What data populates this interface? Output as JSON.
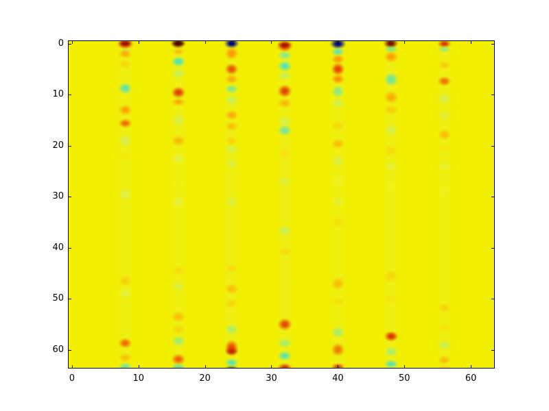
{
  "figure": {
    "background_color": "#ffffff",
    "frame_color": "#000000",
    "tick_label_color": "#000000"
  },
  "chart_data": {
    "type": "heatmap",
    "title": "",
    "xlabel": "",
    "ylabel": "",
    "grid_shape": [
      64,
      64
    ],
    "x_range": [
      -0.5,
      63.5
    ],
    "y_range": [
      63.5,
      -0.5
    ],
    "y_axis_inverted": true,
    "colormap": "jet",
    "legend": "none",
    "grid": "off",
    "x_tick_values": [
      0,
      10,
      20,
      30,
      40,
      50,
      60
    ],
    "x_tick_labels": [
      "0",
      "10",
      "20",
      "30",
      "40",
      "50",
      "60"
    ],
    "y_tick_values": [
      0,
      10,
      20,
      30,
      40,
      50,
      60
    ],
    "y_tick_labels": [
      "0",
      "10",
      "20",
      "30",
      "40",
      "50",
      "60"
    ],
    "background_value_color": "#f3ef00",
    "stripe_tint": {
      "color": "#e2f45c",
      "alpha": 0.2,
      "width_cols": 1.7
    },
    "active_columns": [
      8,
      16,
      24,
      32,
      40,
      48,
      56
    ],
    "blob_format": "[row_center, row_radius, color, alpha, col_radius_optional]",
    "columns": [
      {
        "x": 8,
        "blobs": [
          [
            0,
            1.1,
            "#cf2000",
            1,
            1.3
          ],
          [
            0,
            0.5,
            "#801000",
            0.85
          ],
          [
            1.3,
            0.5,
            "#b5f380",
            0.5
          ],
          [
            2,
            1.0,
            "#ff9800",
            0.75
          ],
          [
            4,
            1.0,
            "#ffc000",
            0.5
          ],
          [
            8.7,
            1.2,
            "#4ae2c2",
            0.85
          ],
          [
            13,
            1.1,
            "#ff8f00",
            0.8
          ],
          [
            15.6,
            0.9,
            "#f04e00",
            0.8
          ],
          [
            19,
            1.4,
            "#c6f17e",
            0.55
          ],
          [
            22,
            1.0,
            "#ffd900",
            0.4
          ],
          [
            29.5,
            1.3,
            "#cdf37c",
            0.5
          ],
          [
            37,
            1.0,
            "#f2ef10",
            0.35
          ],
          [
            46.5,
            1.2,
            "#ffb200",
            0.5
          ],
          [
            49,
            1.0,
            "#d2f477",
            0.45
          ],
          [
            58.7,
            1.1,
            "#f05800",
            0.85
          ],
          [
            61.5,
            0.9,
            "#ffa300",
            0.6
          ],
          [
            63.3,
            0.9,
            "#52e4b6",
            0.8
          ]
        ]
      },
      {
        "x": 16,
        "blobs": [
          [
            0,
            1.0,
            "#6e0900",
            1,
            1.2
          ],
          [
            0,
            0.5,
            "#2e0800",
            0.8
          ],
          [
            1.6,
            0.7,
            "#ff9b00",
            0.55
          ],
          [
            3.5,
            1.1,
            "#3fe4c6",
            0.9
          ],
          [
            5.9,
            1.0,
            "#a5f18a",
            0.55
          ],
          [
            9.6,
            1.2,
            "#e03000",
            0.9
          ],
          [
            11.4,
            0.8,
            "#ff9300",
            0.75
          ],
          [
            15,
            1.5,
            "#c6f27e",
            0.45
          ],
          [
            19,
            1.1,
            "#ffa000",
            0.65
          ],
          [
            22.5,
            1.1,
            "#cdf37f",
            0.4
          ],
          [
            27,
            1.0,
            "#f4ef18",
            0.3
          ],
          [
            31,
            1.2,
            "#d0f37b",
            0.4
          ],
          [
            44.5,
            1.2,
            "#ffc600",
            0.4
          ],
          [
            47.5,
            1.1,
            "#c2f183",
            0.4
          ],
          [
            53.5,
            1.1,
            "#ff9d00",
            0.6
          ],
          [
            56,
            1.0,
            "#ffb800",
            0.45
          ],
          [
            58.3,
            1.1,
            "#79ea9f",
            0.65
          ],
          [
            61.8,
            1.1,
            "#f05500",
            0.9
          ],
          [
            63.4,
            0.8,
            "#49e3bd",
            0.8
          ]
        ]
      },
      {
        "x": 24,
        "blobs": [
          [
            0,
            1.0,
            "#000082",
            1,
            1.2
          ],
          [
            1.9,
            1.3,
            "#ff8a00",
            0.85
          ],
          [
            5,
            1.2,
            "#ea3a00",
            0.85
          ],
          [
            7,
            1.0,
            "#ff9c00",
            0.75
          ],
          [
            8.9,
            0.9,
            "#5ce6ae",
            0.75
          ],
          [
            11.1,
            1.1,
            "#a3f08c",
            0.55
          ],
          [
            14,
            1.1,
            "#ff9600",
            0.75
          ],
          [
            16.2,
            1.0,
            "#ffa900",
            0.65
          ],
          [
            19,
            1.0,
            "#ffbc00",
            0.5
          ],
          [
            20.7,
            0.9,
            "#bff17f",
            0.5
          ],
          [
            23.5,
            1.1,
            "#caf27d",
            0.4
          ],
          [
            31,
            1.2,
            "#c9f27d",
            0.4
          ],
          [
            44,
            1.1,
            "#ffc400",
            0.45
          ],
          [
            48,
            1.2,
            "#ffa000",
            0.6
          ],
          [
            51,
            1.0,
            "#ffb900",
            0.45
          ],
          [
            56,
            1.2,
            "#90ed94",
            0.65
          ],
          [
            59.6,
            1.7,
            "#ea4600",
            0.95
          ],
          [
            60.3,
            0.8,
            "#bb1c00",
            0.85
          ],
          [
            62.5,
            0.9,
            "#44e1c4",
            0.85
          ],
          [
            63.6,
            0.5,
            "#203070",
            0.7
          ]
        ]
      },
      {
        "x": 32,
        "blobs": [
          [
            0.4,
            1.2,
            "#e03000",
            1,
            1.25
          ],
          [
            0.2,
            0.6,
            "#8f0e00",
            0.8
          ],
          [
            2.3,
            0.9,
            "#74e9a3",
            0.8
          ],
          [
            4.4,
            1.1,
            "#41e3cb",
            0.85
          ],
          [
            6.3,
            0.9,
            "#a5f08c",
            0.55
          ],
          [
            9.3,
            1.3,
            "#e23400",
            0.9
          ],
          [
            11.6,
            1.0,
            "#ff9a00",
            0.65
          ],
          [
            15.3,
            1.0,
            "#c0f182",
            0.5
          ],
          [
            17,
            1.1,
            "#4ee3c5",
            0.75
          ],
          [
            21.5,
            1.3,
            "#ffd400",
            0.45
          ],
          [
            27,
            1.1,
            "#caf27e",
            0.4
          ],
          [
            36.7,
            1.2,
            "#a8ef90",
            0.5
          ],
          [
            40.7,
            1.1,
            "#ffc300",
            0.45
          ],
          [
            47,
            1.0,
            "#f6ee18",
            0.3
          ],
          [
            55,
            1.3,
            "#e23a00",
            0.9
          ],
          [
            58.7,
            1.1,
            "#86ec9b",
            0.65
          ],
          [
            61.2,
            1.0,
            "#41e2cb",
            0.8
          ],
          [
            63.4,
            0.9,
            "#d62900",
            0.9
          ]
        ]
      },
      {
        "x": 40,
        "blobs": [
          [
            0,
            1.1,
            "#000788",
            1,
            1.3
          ],
          [
            1.6,
            0.9,
            "#49e4c2",
            0.85
          ],
          [
            3.1,
            1.0,
            "#ff8a00",
            0.8
          ],
          [
            5,
            1.4,
            "#e83400",
            0.9
          ],
          [
            6.9,
            1.0,
            "#ff7c00",
            0.8
          ],
          [
            9.4,
            1.3,
            "#6fe8a6",
            0.75
          ],
          [
            11.6,
            1.0,
            "#b5f188",
            0.5
          ],
          [
            16,
            1.2,
            "#ffc800",
            0.5
          ],
          [
            19.6,
            1.1,
            "#ffa200",
            0.65
          ],
          [
            23,
            1.2,
            "#c0f184",
            0.45
          ],
          [
            27,
            1.1,
            "#eef63c",
            0.35
          ],
          [
            31,
            1.0,
            "#cdf37b",
            0.3
          ],
          [
            35,
            1.3,
            "#ffcb00",
            0.45
          ],
          [
            47,
            1.3,
            "#ff9e00",
            0.6
          ],
          [
            50.5,
            1.0,
            "#ffc400",
            0.35
          ],
          [
            56.5,
            1.2,
            "#81eb9d",
            0.65
          ],
          [
            60,
            1.4,
            "#f06200",
            0.8
          ],
          [
            63.3,
            0.8,
            "#de3200",
            0.85
          ]
        ]
      },
      {
        "x": 48,
        "blobs": [
          [
            0,
            1.0,
            "#780b00",
            1,
            1.2
          ],
          [
            1.1,
            0.7,
            "#57e6b2",
            0.75
          ],
          [
            2.6,
            1.2,
            "#ff9200",
            0.85
          ],
          [
            7,
            1.5,
            "#49e3bf",
            0.75
          ],
          [
            10.5,
            1.3,
            "#ff9800",
            0.75
          ],
          [
            13,
            1.0,
            "#ffb100",
            0.55
          ],
          [
            17,
            1.2,
            "#bdf184",
            0.5
          ],
          [
            21,
            1.2,
            "#ffc400",
            0.45
          ],
          [
            24,
            1.0,
            "#cdf37d",
            0.35
          ],
          [
            28,
            1.0,
            "#f0f630",
            0.3
          ],
          [
            45.5,
            1.3,
            "#ffba00",
            0.45
          ],
          [
            50,
            1.0,
            "#ffcc00",
            0.3
          ],
          [
            57.3,
            1.1,
            "#dd2b00",
            0.95
          ],
          [
            60.3,
            1.0,
            "#8bec98",
            0.65
          ],
          [
            62.8,
            0.9,
            "#3fe2c6",
            0.85
          ]
        ]
      },
      {
        "x": 56,
        "blobs": [
          [
            0,
            0.8,
            "#d62400",
            0.9
          ],
          [
            1.1,
            0.7,
            "#6ce8a6",
            0.65
          ],
          [
            4.2,
            1.0,
            "#ffb400",
            0.55
          ],
          [
            7.3,
            1.0,
            "#f05400",
            0.8
          ],
          [
            10.8,
            1.2,
            "#bbf186",
            0.5
          ],
          [
            14,
            1.0,
            "#cdf37d",
            0.35
          ],
          [
            17.8,
            1.1,
            "#ffa200",
            0.65
          ],
          [
            20.5,
            1.0,
            "#ffd400",
            0.3
          ],
          [
            24,
            1.0,
            "#d0f47b",
            0.3
          ],
          [
            29,
            1.0,
            "#eef646",
            0.25
          ],
          [
            44.5,
            1.1,
            "#f7ee20",
            0.25
          ],
          [
            51.7,
            1.0,
            "#ffb600",
            0.45
          ],
          [
            55.5,
            1.0,
            "#ffc900",
            0.35
          ],
          [
            59,
            1.0,
            "#a3ef8d",
            0.5
          ],
          [
            62,
            1.0,
            "#ff9d00",
            0.55
          ],
          [
            63.5,
            0.6,
            "#ffb100",
            0.45
          ]
        ]
      }
    ]
  }
}
